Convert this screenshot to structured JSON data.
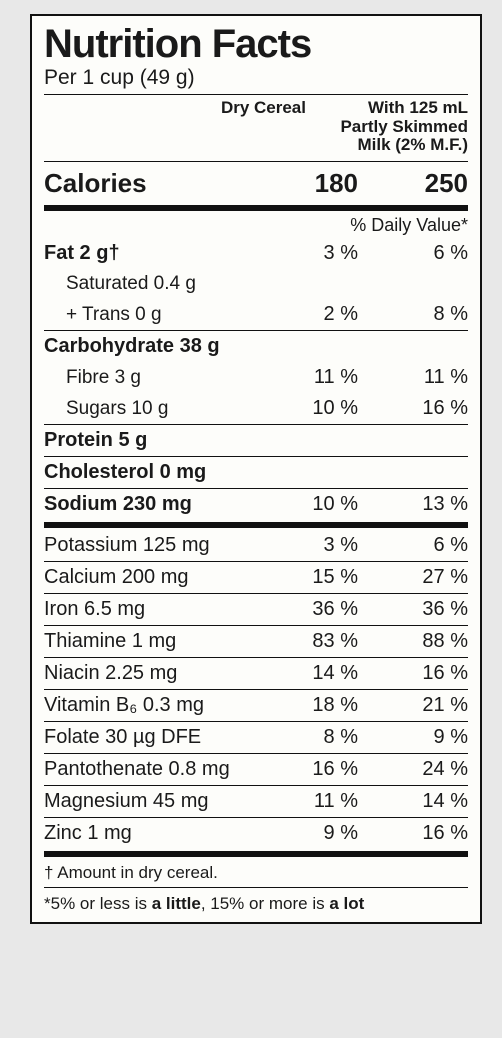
{
  "title": "Nutrition Facts",
  "serving": "Per 1 cup (49 g)",
  "col1": "Dry Cereal",
  "col2": "With 125 mL Partly Skimmed Milk (2% M.F.)",
  "calories": {
    "label": "Calories",
    "v1": "180",
    "v2": "250"
  },
  "dv_header": "% Daily Value*",
  "rows": [
    {
      "label": "Fat 2 g†",
      "v1": "3 %",
      "v2": "6 %",
      "bold": true,
      "rule": false
    },
    {
      "label": "Saturated 0.4 g",
      "sub": true,
      "rule": false
    },
    {
      "label": "+ Trans 0 g",
      "v1": "2 %",
      "v2": "8 %",
      "sub": true,
      "rule": false
    },
    {
      "label": "Carbohydrate 38 g",
      "bold": true,
      "rule": true
    },
    {
      "label": "Fibre 3 g",
      "v1": "11 %",
      "v2": "11 %",
      "sub": true,
      "rule": false
    },
    {
      "label": "Sugars 10 g",
      "v1": "10 %",
      "v2": "16 %",
      "sub": true,
      "rule": false
    },
    {
      "label": "Protein 5 g",
      "bold": true,
      "rule": true
    },
    {
      "label": "Cholesterol 0 mg",
      "bold": true,
      "rule": true
    },
    {
      "label": "Sodium 230 mg",
      "v1": "10 %",
      "v2": "13 %",
      "bold": true,
      "rule": true
    }
  ],
  "vitamins": [
    {
      "label": "Potassium 125 mg",
      "v1": "3 %",
      "v2": "6 %"
    },
    {
      "label": "Calcium 200 mg",
      "v1": "15 %",
      "v2": "27 %"
    },
    {
      "label": "Iron 6.5 mg",
      "v1": "36 %",
      "v2": "36 %"
    },
    {
      "label": "Thiamine 1 mg",
      "v1": "83 %",
      "v2": "88 %"
    },
    {
      "label": "Niacin 2.25 mg",
      "v1": "14 %",
      "v2": "16 %"
    },
    {
      "label": "Vitamin B₆ 0.3 mg",
      "v1": "18 %",
      "v2": "21 %"
    },
    {
      "label": "Folate 30 µg DFE",
      "v1": "8 %",
      "v2": "9 %"
    },
    {
      "label": "Pantothenate 0.8 mg",
      "v1": "16 %",
      "v2": "24 %"
    },
    {
      "label": "Magnesium 45 mg",
      "v1": "11 %",
      "v2": "14 %"
    },
    {
      "label": "Zinc 1 mg",
      "v1": "9 %",
      "v2": "16 %"
    }
  ],
  "footnote1": "† Amount in dry cereal.",
  "footnote2_pre": "*5% or less is ",
  "footnote2_a": "a little",
  "footnote2_mid": ", 15% or more is ",
  "footnote2_b": "a lot"
}
